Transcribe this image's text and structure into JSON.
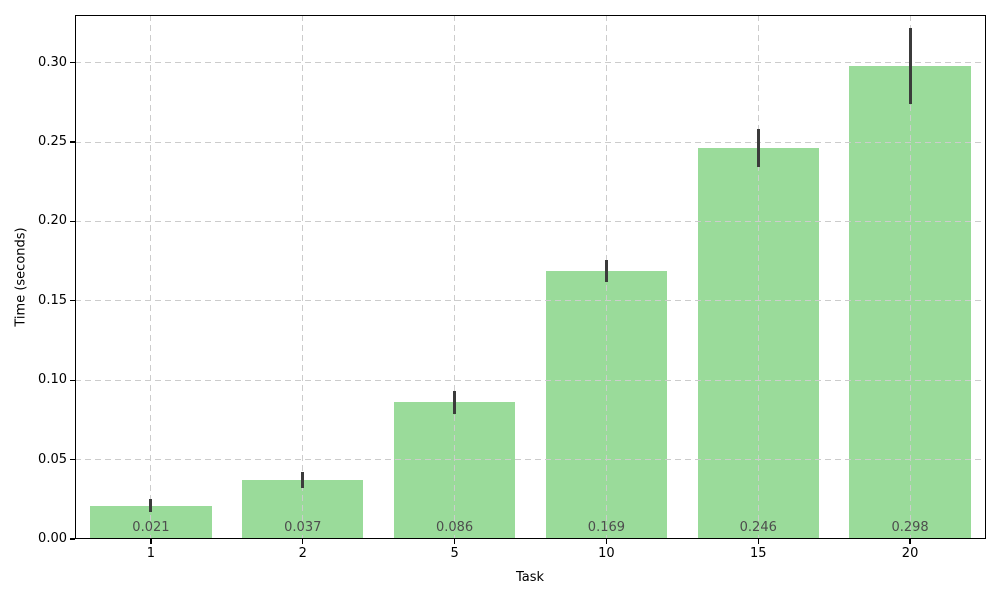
{
  "chart_data": {
    "type": "bar",
    "title": "",
    "xlabel": "Task",
    "ylabel": "Time (seconds)",
    "categories": [
      "1",
      "2",
      "5",
      "10",
      "15",
      "20"
    ],
    "values": [
      0.021,
      0.037,
      0.086,
      0.169,
      0.246,
      0.298
    ],
    "bar_labels": [
      "0.021",
      "0.037",
      "0.086",
      "0.169",
      "0.246",
      "0.298"
    ],
    "errors": [
      0.004,
      0.005,
      0.007,
      0.007,
      0.012,
      0.024
    ],
    "yticks": [
      0,
      0.05,
      0.1,
      0.15,
      0.2,
      0.25,
      0.3
    ],
    "ytick_labels": [
      "0.00",
      "0.05",
      "0.10",
      "0.15",
      "0.20",
      "0.25",
      "0.30"
    ],
    "ylim": [
      0,
      0.33
    ],
    "grid": "dashed-both-axes-over-bars",
    "legend": "none",
    "colors": {
      "bar": "#9adb9a",
      "error_bar": "#3b3b3b",
      "grid": "#cccccc",
      "bar_label_text": "#4d4d4d",
      "axis_text": "#000000",
      "background": "#ffffff"
    }
  }
}
